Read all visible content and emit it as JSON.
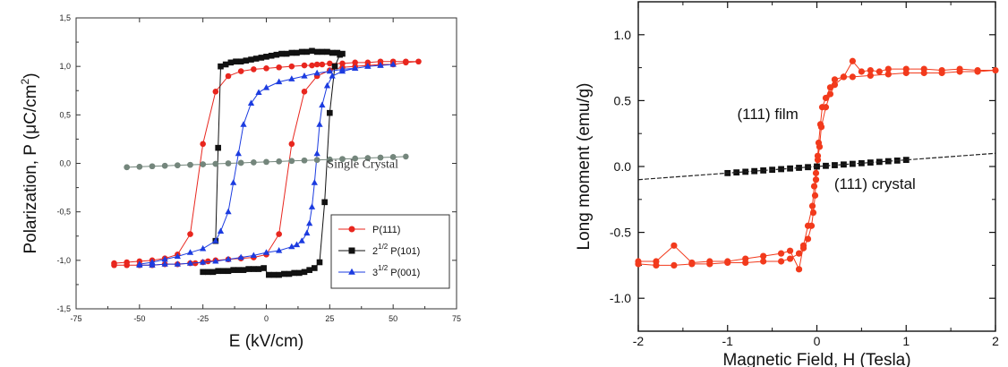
{
  "chart_data": [
    {
      "type": "line",
      "xlabel": "E (kV/cm)",
      "ylabel_prefix": "Polarization, P (",
      "ylabel_mu": "μ",
      "ylabel_unit": "C/cm",
      "ylabel_sup": "2",
      "ylabel_suffix": ")",
      "xlim": [
        -75,
        75
      ],
      "ylim": [
        -1.5,
        1.5
      ],
      "xticks": [
        "-75",
        "-50",
        "-25",
        "0",
        "25",
        "50",
        "75"
      ],
      "yticks": [
        "-1,5",
        "-1,0",
        "-0,5",
        "0,0",
        "0,5",
        "1,0",
        "1,5"
      ],
      "annotations": [
        {
          "text": "Single Crystal",
          "x": 38,
          "y": 0.0
        }
      ],
      "legend": {
        "position": "bottom-right",
        "entries": [
          {
            "text": "P(111)",
            "marker": "circle",
            "color": "#e8261e"
          },
          {
            "pre": "2",
            "sup": "1/2",
            "text": " P(101)",
            "marker": "square",
            "color": "#111111"
          },
          {
            "pre": "3",
            "sup": "1/2",
            "text": " P(001)",
            "marker": "triangle",
            "color": "#1c3ce0"
          }
        ]
      },
      "series": [
        {
          "marker": "circle",
          "color": "#e8261e",
          "line": "#e8261e",
          "x": [
            -60,
            -55,
            -50,
            -45,
            -40,
            -35,
            -30,
            -25,
            -20,
            -15,
            -10,
            -5,
            0,
            5,
            10,
            15,
            18,
            20,
            22,
            25,
            30,
            35,
            40,
            45,
            50,
            55,
            60,
            55,
            50,
            45,
            40,
            35,
            30,
            25,
            20,
            15,
            10,
            5,
            0,
            -5,
            -10,
            -15,
            -20,
            -23,
            -25,
            -28,
            -30,
            -35,
            -40,
            -45,
            -50,
            -55,
            -60
          ],
          "y": [
            -1.03,
            -1.02,
            -1.01,
            -1.0,
            -0.98,
            -0.94,
            -0.73,
            0.2,
            0.74,
            0.9,
            0.95,
            0.97,
            0.98,
            0.99,
            1.0,
            1.01,
            1.01,
            1.02,
            1.02,
            1.03,
            1.03,
            1.04,
            1.04,
            1.05,
            1.05,
            1.05,
            1.05,
            1.04,
            1.02,
            1.02,
            1.01,
            1.0,
            0.99,
            0.96,
            0.9,
            0.74,
            0.2,
            -0.73,
            -0.94,
            -0.97,
            -0.98,
            -0.99,
            -1.0,
            -1.01,
            -1.02,
            -1.03,
            -1.03,
            -1.04,
            -1.04,
            -1.05,
            -1.05,
            -1.05,
            -1.05
          ]
        },
        {
          "marker": "square",
          "color": "#111111",
          "line": "#111111",
          "x": [
            -25,
            -23,
            -21,
            -19,
            -17,
            -15,
            -13,
            -11,
            -9,
            -7,
            -5,
            -3,
            -1,
            1,
            3,
            5,
            7,
            9,
            11,
            13,
            15,
            17,
            19,
            21,
            23,
            25,
            27,
            29,
            30,
            28,
            26,
            24,
            22,
            20,
            18,
            16,
            14,
            12,
            10,
            8,
            6,
            4,
            2,
            0,
            -2,
            -4,
            -6,
            -8,
            -10,
            -12,
            -14,
            -16,
            -18,
            -19,
            -20
          ],
          "y": [
            -1.12,
            -1.12,
            -1.12,
            -1.11,
            -1.11,
            -1.11,
            -1.1,
            -1.1,
            -1.1,
            -1.09,
            -1.09,
            -1.09,
            -1.08,
            -1.15,
            -1.15,
            -1.15,
            -1.14,
            -1.14,
            -1.13,
            -1.13,
            -1.12,
            -1.1,
            -1.08,
            -1.02,
            -0.4,
            0.52,
            1.0,
            1.12,
            1.13,
            1.14,
            1.14,
            1.15,
            1.15,
            1.15,
            1.16,
            1.15,
            1.15,
            1.14,
            1.14,
            1.13,
            1.13,
            1.12,
            1.11,
            1.1,
            1.09,
            1.08,
            1.07,
            1.06,
            1.05,
            1.05,
            1.04,
            1.02,
            1.0,
            0.16,
            -0.8
          ]
        },
        {
          "marker": "triangle",
          "color": "#1c3ce0",
          "line": "#1c3ce0",
          "x": [
            -50,
            -45,
            -40,
            -35,
            -30,
            -25,
            -20,
            -15,
            -10,
            -5,
            0,
            5,
            10,
            12,
            14,
            16,
            17,
            18,
            19,
            20,
            21,
            22,
            24,
            26,
            30,
            35,
            40,
            45,
            50,
            45,
            40,
            35,
            30,
            25,
            20,
            15,
            10,
            5,
            0,
            -3,
            -6,
            -9,
            -11,
            -13,
            -15,
            -18,
            -20,
            -25,
            -30,
            -35,
            -40,
            -45,
            -50
          ],
          "y": [
            -1.05,
            -1.05,
            -1.04,
            -1.04,
            -1.03,
            -1.02,
            -1.01,
            -0.99,
            -0.97,
            -0.95,
            -0.92,
            -0.9,
            -0.86,
            -0.84,
            -0.8,
            -0.72,
            -0.62,
            -0.45,
            -0.2,
            0.1,
            0.4,
            0.6,
            0.8,
            0.9,
            0.95,
            0.98,
            1.0,
            1.01,
            1.02,
            1.01,
            1.0,
            0.98,
            0.97,
            0.95,
            0.93,
            0.9,
            0.87,
            0.84,
            0.78,
            0.73,
            0.62,
            0.4,
            0.1,
            -0.2,
            -0.5,
            -0.7,
            -0.8,
            -0.88,
            -0.92,
            -0.96,
            -0.99,
            -1.02,
            -1.04
          ]
        },
        {
          "marker": "circle",
          "color": "#74867c",
          "line": "#74867c",
          "x": [
            -55,
            -50,
            -45,
            -40,
            -35,
            -30,
            -25,
            -20,
            -15,
            -10,
            -5,
            0,
            5,
            10,
            15,
            20,
            25,
            30,
            35,
            40,
            45,
            50,
            55,
            50,
            45,
            40,
            35,
            30,
            25,
            20,
            15,
            10,
            5,
            0,
            -5,
            -10,
            -15,
            -20,
            -25,
            -30,
            -35,
            -40,
            -45,
            -50,
            -55
          ],
          "y": [
            -0.04,
            -0.035,
            -0.03,
            -0.025,
            -0.02,
            -0.015,
            -0.01,
            -0.005,
            0.0,
            0.005,
            0.01,
            0.015,
            0.02,
            0.025,
            0.03,
            0.035,
            0.04,
            0.045,
            0.05,
            0.055,
            0.06,
            0.065,
            0.07,
            0.065,
            0.06,
            0.055,
            0.05,
            0.045,
            0.04,
            0.035,
            0.03,
            0.025,
            0.02,
            0.015,
            0.01,
            0.005,
            0.0,
            -0.005,
            -0.01,
            -0.015,
            -0.02,
            -0.025,
            -0.03,
            -0.035,
            -0.04
          ]
        }
      ]
    },
    {
      "type": "line",
      "xlabel": "Magnetic Field, H (Tesla)",
      "ylabel": "Long moment (emu/g)",
      "xlim": [
        -2,
        2
      ],
      "ylim": [
        -1.25,
        1.25
      ],
      "xticks": [
        "-2",
        "-1",
        "0",
        "1",
        "2"
      ],
      "yticks": [
        "-1.0",
        "-0.5",
        "0.0",
        "0.5",
        "1.0"
      ],
      "annotations": [
        {
          "text": "(111) film",
          "x": -0.55,
          "y": 0.36
        },
        {
          "text": "(111) crystal",
          "x": 0.65,
          "y": -0.17
        }
      ],
      "series": [
        {
          "marker": "circle",
          "color": "#f23a1c",
          "line": "#f23a1c",
          "x": [
            -2,
            -1.8,
            -1.6,
            -1.4,
            -1.2,
            -1.0,
            -0.8,
            -0.6,
            -0.4,
            -0.3,
            -0.2,
            -0.15,
            -0.1,
            -0.05,
            -0.03,
            -0.01,
            0.0,
            0.01,
            0.02,
            0.04,
            0.06,
            0.1,
            0.15,
            0.2,
            0.3,
            0.4,
            0.5,
            0.6,
            0.7,
            0.8,
            1.0,
            1.2,
            1.4,
            1.6,
            1.8,
            2.0,
            1.8,
            1.6,
            1.4,
            1.2,
            1.0,
            0.8,
            0.6,
            0.4,
            0.3,
            0.2,
            0.15,
            0.1,
            0.05,
            0.03,
            0.01,
            0.0,
            -0.01,
            -0.02,
            -0.04,
            -0.06,
            -0.1,
            -0.15,
            -0.2,
            -0.3,
            -0.4,
            -0.6,
            -0.8,
            -1.0,
            -1.2,
            -1.4,
            -1.6,
            -1.8,
            -2.0
          ],
          "y": [
            -0.72,
            -0.72,
            -0.6,
            -0.73,
            -0.72,
            -0.72,
            -0.7,
            -0.68,
            -0.66,
            -0.64,
            -0.78,
            -0.6,
            -0.45,
            -0.3,
            -0.15,
            -0.05,
            0.0,
            0.08,
            0.18,
            0.32,
            0.45,
            0.52,
            0.6,
            0.66,
            0.68,
            0.8,
            0.72,
            0.73,
            0.72,
            0.74,
            0.74,
            0.74,
            0.73,
            0.74,
            0.73,
            0.73,
            0.72,
            0.72,
            0.71,
            0.71,
            0.71,
            0.7,
            0.69,
            0.68,
            0.68,
            0.62,
            0.55,
            0.45,
            0.3,
            0.15,
            0.05,
            0.0,
            -0.1,
            -0.22,
            -0.35,
            -0.45,
            -0.55,
            -0.62,
            -0.66,
            -0.7,
            -0.72,
            -0.72,
            -0.73,
            -0.73,
            -0.74,
            -0.74,
            -0.75,
            -0.75,
            -0.74
          ]
        },
        {
          "marker": "square",
          "color": "#111111",
          "line": null,
          "x": [
            -1.0,
            -0.9,
            -0.8,
            -0.7,
            -0.6,
            -0.5,
            -0.4,
            -0.3,
            -0.2,
            -0.1,
            0.0,
            0.1,
            0.2,
            0.3,
            0.4,
            0.5,
            0.6,
            0.7,
            0.8,
            0.9,
            1.0
          ],
          "y": [
            -0.05,
            -0.045,
            -0.04,
            -0.035,
            -0.03,
            -0.025,
            -0.02,
            -0.015,
            -0.01,
            -0.005,
            0.0,
            0.005,
            0.01,
            0.015,
            0.02,
            0.025,
            0.03,
            0.035,
            0.04,
            0.045,
            0.05
          ]
        },
        {
          "marker": null,
          "color": "#222222",
          "line": "#222222",
          "x": [
            -2,
            2
          ],
          "y": [
            -0.1,
            0.1
          ]
        }
      ]
    }
  ]
}
